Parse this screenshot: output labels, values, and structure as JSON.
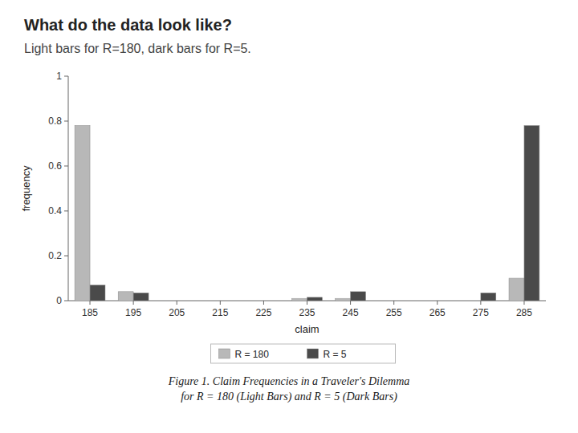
{
  "chart_data": {
    "type": "bar",
    "title": "What do the data look like?",
    "subtitle": "Light bars for R=180, dark bars for R=5.",
    "caption": "Figure 1.  Claim Frequencies in a Traveler's Dilemma\nfor R = 180 (Light Bars) and R = 5 (Dark Bars)",
    "x_label": "claim",
    "y_label": "frequency",
    "categories": [
      "185",
      "195",
      "205",
      "215",
      "225",
      "235",
      "245",
      "255",
      "265",
      "275",
      "285"
    ],
    "series": [
      {
        "name": "R = 180",
        "color": "#b8b8b8",
        "values": [
          0.78,
          0.04,
          0.0,
          0.0,
          0.0,
          0.01,
          0.01,
          0.0,
          0.0,
          0.0,
          0.1
        ]
      },
      {
        "name": "R = 5",
        "color": "#4a4a4a",
        "values": [
          0.07,
          0.035,
          0.0,
          0.0,
          0.0,
          0.015,
          0.04,
          0.0,
          0.0,
          0.035,
          0.78
        ]
      }
    ],
    "ylim": [
      0,
      1.0
    ],
    "yticks": [
      0,
      0.2,
      0.4,
      0.6,
      0.8,
      1
    ],
    "grid": false,
    "legend": "bottom"
  }
}
